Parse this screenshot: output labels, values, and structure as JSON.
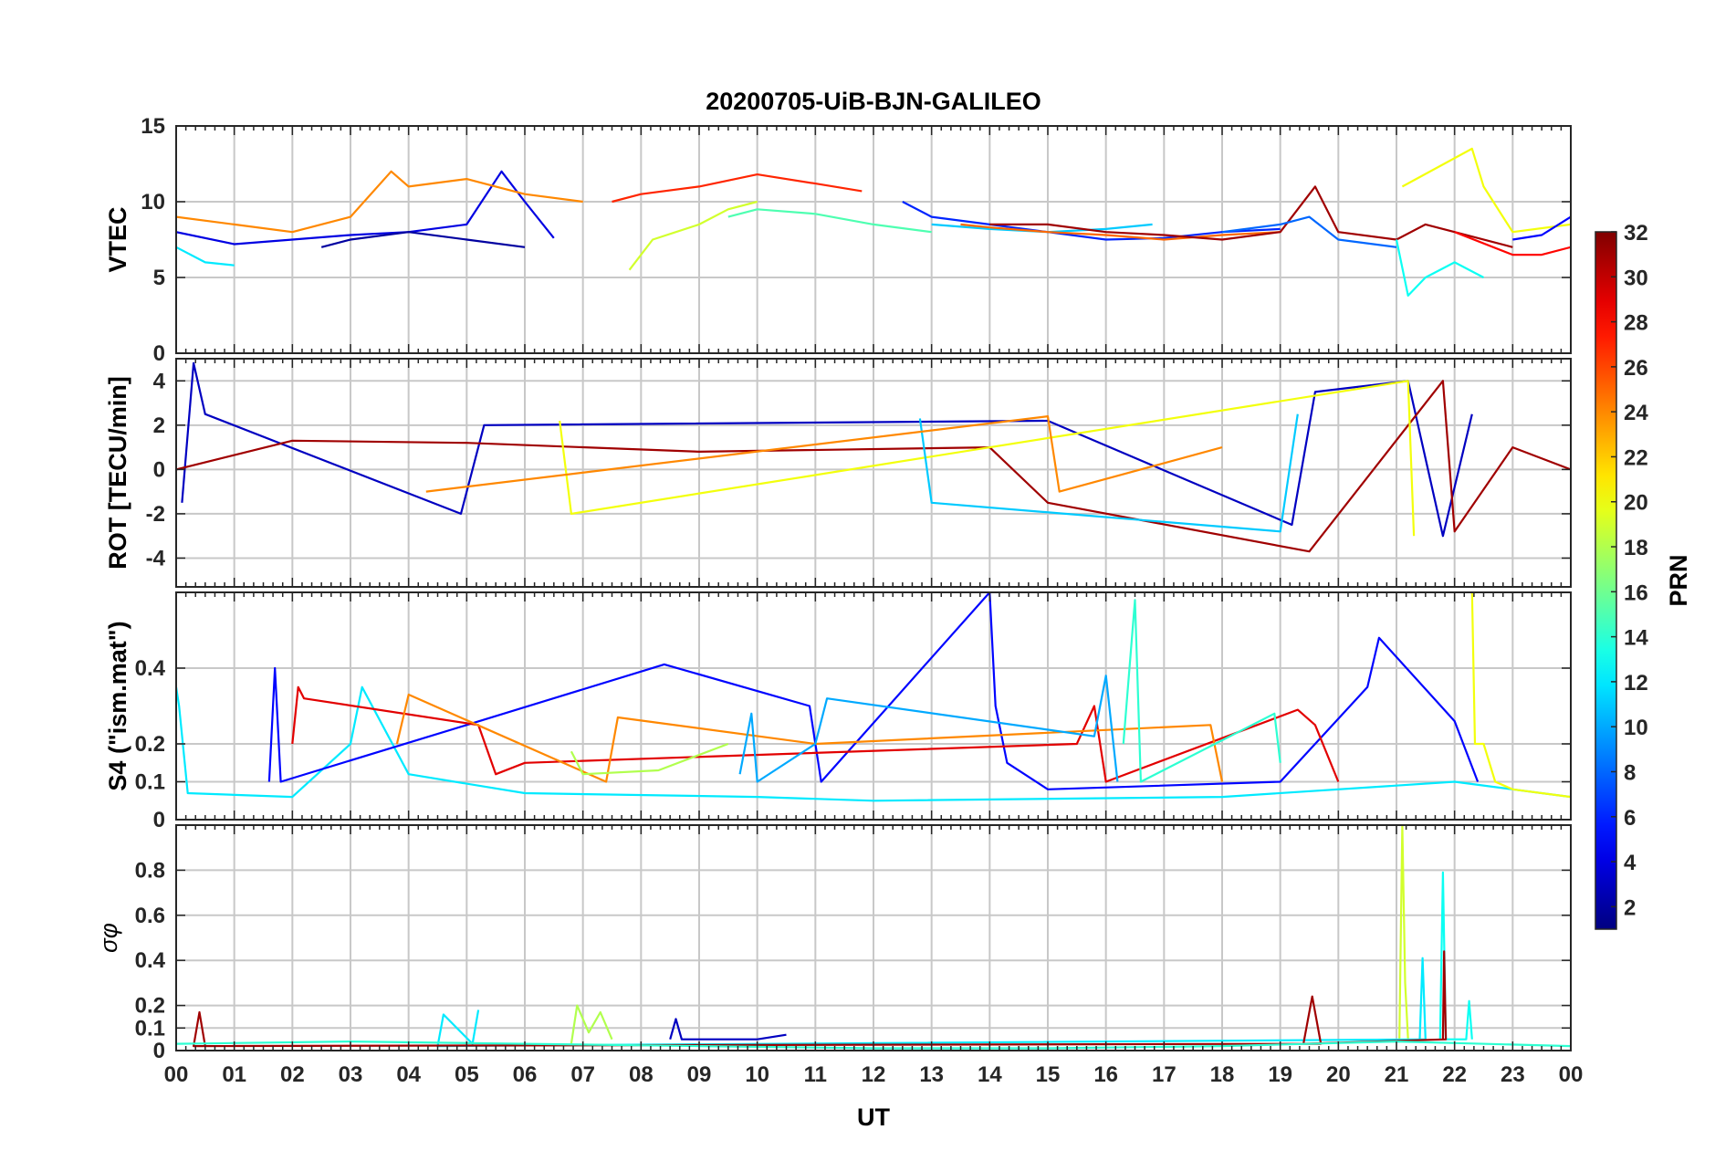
{
  "figure": {
    "title": "20200705-UiB-BJN-GALILEO",
    "xlabel": "UT",
    "x_tick_labels": [
      "00",
      "01",
      "02",
      "03",
      "04",
      "05",
      "06",
      "07",
      "08",
      "09",
      "10",
      "11",
      "12",
      "13",
      "14",
      "15",
      "16",
      "17",
      "18",
      "19",
      "20",
      "21",
      "22",
      "23",
      "00"
    ],
    "colorbar": {
      "label": "PRN",
      "colormap": "jet",
      "range": [
        1,
        32
      ],
      "tick_labels": [
        "2",
        "4",
        "6",
        "8",
        "10",
        "12",
        "14",
        "16",
        "18",
        "20",
        "22",
        "24",
        "26",
        "28",
        "30",
        "32"
      ]
    }
  },
  "chart_data": [
    {
      "type": "line",
      "ylabel": "VTEC",
      "xlim": [
        0,
        24
      ],
      "ylim": [
        0,
        15
      ],
      "y_ticks": [
        0,
        5,
        10,
        15
      ],
      "y_tick_labels": [
        "0",
        "5",
        "10",
        "15"
      ],
      "grid": true,
      "x_unit": "hours UT",
      "series": [
        {
          "prn": 4,
          "x": [
            0,
            1,
            2,
            3,
            4,
            5,
            5.6,
            6,
            6.5
          ],
          "y": [
            8,
            7.2,
            7.5,
            7.8,
            8,
            8.5,
            12,
            10,
            7.6
          ]
        },
        {
          "prn": 12,
          "x": [
            0,
            0.5,
            1
          ],
          "y": [
            7,
            6,
            5.8
          ]
        },
        {
          "prn": 24,
          "x": [
            0,
            1,
            2,
            3,
            3.7,
            4,
            5,
            5.5,
            6,
            7
          ],
          "y": [
            9,
            8.5,
            8,
            9,
            12,
            11,
            11.5,
            11,
            10.5,
            10
          ]
        },
        {
          "prn": 27,
          "x": [
            7.5,
            8,
            9,
            10,
            11,
            11.8
          ],
          "y": [
            10,
            10.5,
            11,
            11.8,
            11.2,
            10.7
          ]
        },
        {
          "prn": 2,
          "x": [
            2.5,
            3,
            4,
            5,
            6
          ],
          "y": [
            7,
            7.5,
            8,
            7.5,
            7
          ]
        },
        {
          "prn": 19,
          "x": [
            7.8,
            8.2,
            9,
            9.5,
            10
          ],
          "y": [
            5.5,
            7.5,
            8.5,
            9.5,
            10
          ]
        },
        {
          "prn": 15,
          "x": [
            9.5,
            10,
            11,
            12,
            13
          ],
          "y": [
            9,
            9.5,
            9.2,
            8.5,
            8
          ]
        },
        {
          "prn": 6,
          "x": [
            12.5,
            13,
            14,
            15,
            16,
            17,
            18,
            19
          ],
          "y": [
            10,
            9,
            8.5,
            8,
            7.5,
            7.6,
            8,
            8.2
          ]
        },
        {
          "prn": 11,
          "x": [
            13,
            14,
            15,
            16,
            16.8
          ],
          "y": [
            8.5,
            8.2,
            8,
            8.2,
            8.5
          ]
        },
        {
          "prn": 25,
          "x": [
            13.5,
            14,
            15,
            16,
            17,
            18,
            19
          ],
          "y": [
            8.5,
            8.3,
            8,
            7.8,
            7.5,
            7.8,
            8
          ]
        },
        {
          "prn": 31,
          "x": [
            14,
            15,
            16,
            17,
            18,
            19,
            19.6,
            20,
            21,
            21.5,
            22,
            23
          ],
          "y": [
            8.5,
            8.5,
            8,
            7.8,
            7.5,
            8,
            11,
            8,
            7.5,
            8.5,
            8,
            7
          ]
        },
        {
          "prn": 8,
          "x": [
            18,
            19,
            19.5,
            20,
            21
          ],
          "y": [
            8,
            8.5,
            9,
            7.5,
            7
          ]
        },
        {
          "prn": 13,
          "x": [
            21,
            21.2,
            21.5,
            22,
            22.5
          ],
          "y": [
            7.5,
            3.8,
            5,
            6,
            5
          ]
        },
        {
          "prn": 20,
          "x": [
            21.1,
            22.3,
            22.5,
            23,
            24
          ],
          "y": [
            11,
            13.5,
            11,
            8,
            8.5
          ]
        },
        {
          "prn": 28,
          "x": [
            22,
            23,
            23.5,
            24
          ],
          "y": [
            8,
            6.5,
            6.5,
            7
          ]
        },
        {
          "prn": 5,
          "x": [
            23,
            23.5,
            24
          ],
          "y": [
            7.5,
            7.8,
            9
          ]
        }
      ]
    },
    {
      "type": "line",
      "ylabel": "ROT [TECU/min]",
      "xlim": [
        0,
        24
      ],
      "ylim": [
        -5.3,
        5
      ],
      "y_ticks": [
        -4,
        -2,
        0,
        2,
        4
      ],
      "y_tick_labels": [
        "-4",
        "-2",
        "0",
        "2",
        "4"
      ],
      "grid": true,
      "x_unit": "hours UT",
      "series": [
        {
          "prn": 3,
          "x": [
            0.1,
            0.3,
            0.5,
            4.9,
            5.3,
            15,
            19.2,
            19.6,
            21.2,
            21.8,
            22.3
          ],
          "y": [
            -1.5,
            4.8,
            2.5,
            -2,
            2,
            2.2,
            -2.5,
            3.5,
            4,
            -3,
            2.5
          ]
        },
        {
          "prn": 31,
          "x": [
            0,
            2,
            5,
            9,
            14,
            15,
            19.5,
            21.8,
            22,
            23,
            24
          ],
          "y": [
            0,
            1.3,
            1.2,
            0.8,
            1,
            -1.5,
            -3.7,
            4,
            -2.8,
            1,
            0
          ]
        },
        {
          "prn": 20,
          "x": [
            6.6,
            6.8,
            21.2,
            21.3
          ],
          "y": [
            2.2,
            -2,
            4,
            -3
          ]
        },
        {
          "prn": 11,
          "x": [
            12.8,
            13,
            19,
            19.3
          ],
          "y": [
            2.3,
            -1.5,
            -2.8,
            2.5
          ]
        },
        {
          "prn": 24,
          "x": [
            4.3,
            15,
            15.2,
            18
          ],
          "y": [
            -1,
            2.4,
            -1,
            1
          ]
        }
      ]
    },
    {
      "type": "line",
      "ylabel": "S4 (\"ism.mat\")",
      "xlim": [
        0,
        24
      ],
      "ylim": [
        0,
        0.6
      ],
      "y_ticks": [
        0,
        0.1,
        0.2,
        0.4
      ],
      "y_tick_labels": [
        "0",
        "0.1",
        "0.2",
        "0.4"
      ],
      "grid": true,
      "x_unit": "hours UT",
      "series": [
        {
          "prn": 12,
          "x": [
            0,
            0.05,
            0.2,
            2,
            3,
            3.2,
            4,
            6,
            10,
            12,
            18,
            22,
            24
          ],
          "y": [
            0.35,
            0.3,
            0.07,
            0.06,
            0.2,
            0.35,
            0.12,
            0.07,
            0.06,
            0.05,
            0.06,
            0.1,
            0.06
          ]
        },
        {
          "prn": 5,
          "x": [
            1.6,
            1.7,
            1.8,
            5,
            8.4,
            10.9,
            11.1,
            14,
            14.1,
            14.3,
            15,
            19,
            20.5,
            20.7,
            22,
            22.4
          ],
          "y": [
            0.1,
            0.4,
            0.1,
            0.25,
            0.41,
            0.3,
            0.1,
            0.6,
            0.3,
            0.15,
            0.08,
            0.1,
            0.35,
            0.48,
            0.26,
            0.1
          ]
        },
        {
          "prn": 29,
          "x": [
            2,
            2.1,
            2.2,
            5.2,
            5.5,
            6,
            15.5,
            15.8,
            16,
            19.3,
            19.6,
            20
          ],
          "y": [
            0.2,
            0.35,
            0.32,
            0.25,
            0.12,
            0.15,
            0.2,
            0.3,
            0.1,
            0.29,
            0.25,
            0.1
          ]
        },
        {
          "prn": 24,
          "x": [
            3.8,
            4,
            7.4,
            7.6,
            11,
            17.8,
            18
          ],
          "y": [
            0.2,
            0.33,
            0.1,
            0.27,
            0.2,
            0.25,
            0.1
          ]
        },
        {
          "prn": 14,
          "x": [
            16.3,
            16.5,
            16.6,
            18.9,
            19
          ],
          "y": [
            0.2,
            0.58,
            0.1,
            0.28,
            0.15
          ]
        },
        {
          "prn": 20,
          "x": [
            22.3,
            22.35,
            22.5,
            22.7,
            23,
            24
          ],
          "y": [
            0.6,
            0.2,
            0.2,
            0.1,
            0.08,
            0.06
          ]
        },
        {
          "prn": 10,
          "x": [
            9.7,
            9.9,
            10,
            11,
            11.2,
            15.8,
            16,
            16.2
          ],
          "y": [
            0.12,
            0.28,
            0.1,
            0.2,
            0.32,
            0.22,
            0.38,
            0.1
          ]
        },
        {
          "prn": 18,
          "x": [
            6.8,
            7,
            8.3,
            9.5
          ],
          "y": [
            0.18,
            0.12,
            0.13,
            0.2
          ]
        }
      ]
    },
    {
      "type": "line",
      "ylabel": "σφ",
      "xlim": [
        0,
        24
      ],
      "ylim": [
        0,
        1
      ],
      "y_ticks": [
        0,
        0.1,
        0.2,
        0.4,
        0.6,
        0.8
      ],
      "y_tick_labels": [
        "0",
        "0.1",
        "0.2",
        "0.4",
        "0.6",
        "0.8"
      ],
      "grid": true,
      "x_unit": "hours UT",
      "series": [
        {
          "prn": 19,
          "x": [
            21.05,
            21.1,
            21.15,
            21.2
          ],
          "y": [
            0.05,
            1,
            0.3,
            0.05
          ]
        },
        {
          "prn": 13,
          "x": [
            21.75,
            21.8,
            21.85,
            22.2,
            22.25,
            22.3
          ],
          "y": [
            0.05,
            0.79,
            0.05,
            0.05,
            0.22,
            0.05
          ]
        },
        {
          "prn": 12,
          "x": [
            21.4,
            21.45,
            21.5,
            4.5,
            4.6,
            5.1,
            5.2
          ],
          "y": [
            0.05,
            0.41,
            0.05,
            0.02,
            0.16,
            0.03,
            0.18
          ]
        },
        {
          "prn": 31,
          "x": [
            21.8,
            21.82,
            21.85,
            19.4,
            19.55,
            19.7,
            0.3,
            0.4,
            0.5
          ],
          "y": [
            0.05,
            0.44,
            0.05,
            0.03,
            0.24,
            0.03,
            0.02,
            0.17,
            0.02
          ]
        },
        {
          "prn": 18,
          "x": [
            6.8,
            6.9,
            7.1,
            7.3,
            7.5
          ],
          "y": [
            0.03,
            0.2,
            0.08,
            0.17,
            0.05
          ]
        },
        {
          "prn": 3,
          "x": [
            8.5,
            8.6,
            8.7,
            10,
            10.5
          ],
          "y": [
            0.05,
            0.14,
            0.05,
            0.05,
            0.07
          ]
        },
        {
          "prn": 14,
          "x": [
            0,
            3,
            6,
            9,
            12,
            15,
            18,
            21,
            24
          ],
          "y": [
            0.03,
            0.04,
            0.03,
            0.02,
            0.01,
            0.01,
            0.02,
            0.04,
            0.02
          ]
        }
      ]
    }
  ]
}
